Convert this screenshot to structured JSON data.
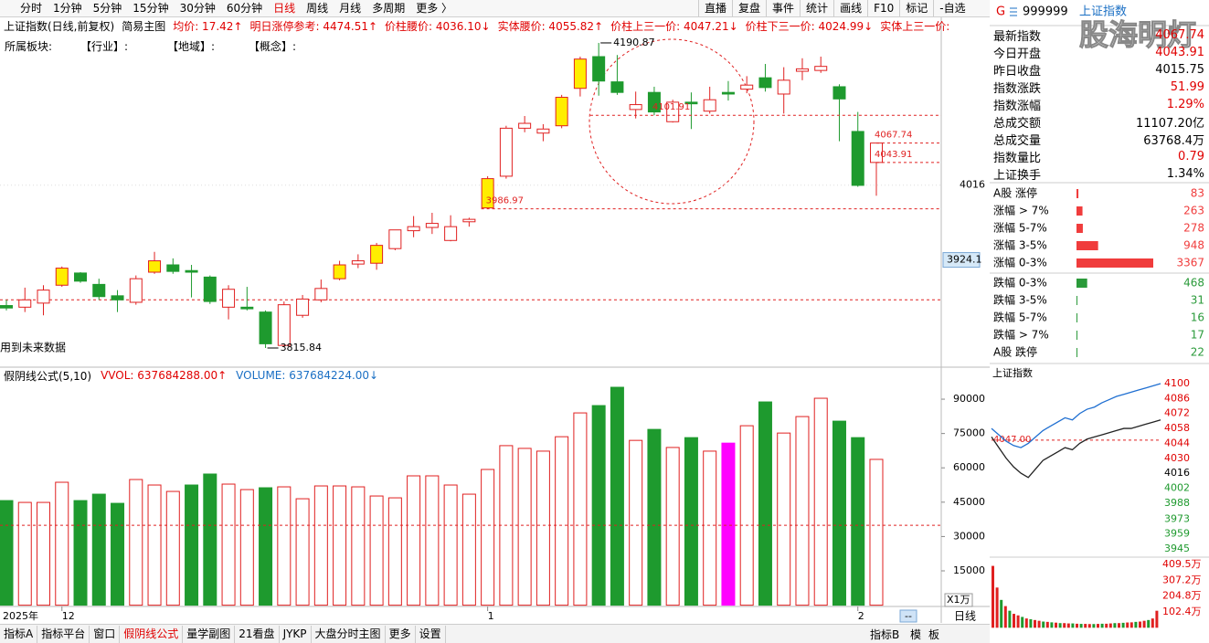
{
  "toolbar": {
    "left": [
      {
        "text": "分时",
        "color": "#000"
      },
      {
        "text": "1分钟",
        "color": "#000"
      },
      {
        "text": "5分钟",
        "color": "#000"
      },
      {
        "text": "15分钟",
        "color": "#000"
      },
      {
        "text": "30分钟",
        "color": "#000"
      },
      {
        "text": "60分钟",
        "color": "#000"
      },
      {
        "text": "日线",
        "color": "#e00000"
      },
      {
        "text": "周线",
        "color": "#000"
      },
      {
        "text": "月线",
        "color": "#000"
      },
      {
        "text": "多周期",
        "color": "#000"
      },
      {
        "text": "更多 〉",
        "color": "#000"
      }
    ],
    "right": [
      "直播",
      "复盘",
      "事件",
      "统计",
      "画线",
      "F10",
      "标记",
      "-自选"
    ]
  },
  "info_bar": {
    "title": "上证指数(日线,前复权)",
    "mode": "简易主图",
    "items": [
      {
        "text": "均价: 17.42↑",
        "color": "#e00000"
      },
      {
        "text": "明日涨停参考: 4474.51↑",
        "color": "#e00000"
      },
      {
        "text": "价柱腰价: 4036.10↓",
        "color": "#e00000"
      },
      {
        "text": "实体腰价: 4055.82↑",
        "color": "#e00000"
      },
      {
        "text": "价柱上三一价: 4047.21↓",
        "color": "#e00000"
      },
      {
        "text": "价柱下三一价: 4024.99↓",
        "color": "#e00000"
      },
      {
        "text": "实体上三一价:",
        "color": "#e00000"
      }
    ]
  },
  "sector_bar": [
    "所属板块:",
    "【行业】:",
    "【地域】:",
    "【概念】:"
  ],
  "note": "用到未来数据",
  "volume_bar": [
    {
      "text": "假阴线公式(5,10)",
      "color": "#000"
    },
    {
      "text": "VVOL: 637684288.00↑",
      "color": "#e00000"
    },
    {
      "text": "VOLUME: 637684224.00↓",
      "color": "#1a6fc4"
    }
  ],
  "bottom_tabs": [
    {
      "text": "指标A",
      "color": "#000"
    },
    {
      "text": "指标平台",
      "color": "#000"
    },
    {
      "text": "窗口",
      "color": "#000"
    },
    {
      "text": "假阴线公式",
      "color": "#e00000"
    },
    {
      "text": "量学副图",
      "color": "#000"
    },
    {
      "text": "21看盘",
      "color": "#000"
    },
    {
      "text": "JYKP",
      "color": "#000"
    },
    {
      "text": "大盘分时主图",
      "color": "#000"
    },
    {
      "text": "更多",
      "color": "#000"
    },
    {
      "text": "设置",
      "color": "#000"
    }
  ],
  "bottom_right": [
    "指标B",
    "模",
    "板"
  ],
  "period_label": "日线",
  "period_box": "--",
  "quote_header": {
    "market": "G",
    "code": "999999",
    "name": "上证指数"
  },
  "watermark": "股海明灯",
  "stats": [
    {
      "name": "最新指数",
      "value": "4067.74",
      "color": "#e00000"
    },
    {
      "name": "今日开盘",
      "value": "4043.91",
      "color": "#e00000"
    },
    {
      "name": "昨日收盘",
      "value": "4015.75",
      "color": "#000"
    },
    {
      "name": "指数涨跌",
      "value": "51.99",
      "color": "#e00000"
    },
    {
      "name": "指数涨幅",
      "value": "1.29%",
      "color": "#e00000"
    },
    {
      "name": "总成交额",
      "value": "11107.20亿",
      "color": "#000"
    },
    {
      "name": "总成交量",
      "value": "63768.4万",
      "color": "#000"
    },
    {
      "name": "指数量比",
      "value": "0.79",
      "color": "#e00000"
    },
    {
      "name": "上证换手",
      "value": "1.34%",
      "color": "#000"
    }
  ],
  "chart_data": [
    {
      "type": "candlestick",
      "year_label": "2025年",
      "categories": [
        null,
        null,
        null,
        "12",
        null,
        null,
        null,
        null,
        null,
        null,
        null,
        null,
        null,
        null,
        null,
        null,
        null,
        null,
        null,
        null,
        null,
        null,
        null,
        null,
        null,
        null,
        "1",
        null,
        null,
        null,
        null,
        null,
        null,
        null,
        null,
        null,
        null,
        null,
        null,
        null,
        null,
        null,
        null,
        null,
        null,
        null,
        "2",
        null
      ],
      "open": [
        3868,
        3866,
        3871,
        3893,
        3908,
        3894,
        3880,
        3872,
        3909,
        3918,
        3911,
        3903,
        3866,
        3866,
        3860,
        3819,
        3856,
        3875,
        3901,
        3919,
        3920,
        3938,
        3960,
        3964,
        3948,
        3971,
        3988,
        4027,
        4086,
        4080,
        4089,
        4135,
        4174,
        4143,
        4109,
        4130,
        4094,
        4118,
        4107,
        4130,
        4134,
        4148,
        4128,
        4156,
        4157,
        4137,
        4082,
        4043.91
      ],
      "high": [
        3875,
        3890,
        3893,
        3916,
        3909,
        3901,
        3887,
        3905,
        3934,
        3926,
        3918,
        3905,
        3893,
        3891,
        3862,
        3873,
        3881,
        3900,
        3923,
        3931,
        3945,
        3961,
        3978,
        3982,
        3979,
        3976,
        4027,
        4089,
        4101,
        4091,
        4127,
        4174,
        4190.87,
        4176,
        4131,
        4137,
        4121,
        4130,
        4137,
        4144,
        4150,
        4165,
        4161,
        4172,
        4174,
        4140,
        4106,
        4067.74
      ],
      "low": [
        3862,
        3860,
        3856,
        3891,
        3896,
        3875,
        3860,
        3869,
        3907,
        3907,
        3878,
        3870,
        3851,
        3862,
        3815.84,
        3817,
        3853,
        3872,
        3899,
        3914,
        3912,
        3936,
        3952,
        3956,
        3947,
        3965,
        3986.97,
        4024,
        4081,
        4070,
        4086,
        4125,
        4126,
        4127,
        4098,
        4101.91,
        4093,
        4085,
        4104,
        4120,
        4129,
        4131,
        4104,
        4145,
        4154,
        4070,
        4014,
        4003
      ],
      "close": [
        3865,
        3875,
        3887,
        3914,
        3898,
        3879,
        3875,
        3901,
        3923,
        3910,
        3909,
        3873,
        3888,
        3864,
        3821,
        3869,
        3876,
        3889,
        3918,
        3923,
        3942,
        3961,
        3965,
        3969,
        3965,
        3974,
        4024,
        4086,
        4092,
        4085,
        4124,
        4171,
        4144,
        4130,
        4115,
        4106,
        4118,
        4116,
        4121,
        4128,
        4139,
        4136,
        4145,
        4159,
        4162,
        4122,
        4015.75,
        4067.74
      ],
      "colors": [
        "#1e9a2e",
        "#e02020",
        "#e02020",
        "#ffee00",
        "#1e9a2e",
        "#1e9a2e",
        "#1e9a2e",
        "#e02020",
        "#ffee00",
        "#1e9a2e",
        "#1e9a2e",
        "#1e9a2e",
        "#e02020",
        "#1e9a2e",
        "#1e9a2e",
        "#e02020",
        "#e02020",
        "#e02020",
        "#ffee00",
        "#e02020",
        "#ffee00",
        "#e02020",
        "#e02020",
        "#e02020",
        "#e02020",
        "#e02020",
        "#ffee00",
        "#e02020",
        "#e02020",
        "#e02020",
        "#ffee00",
        "#ffee00",
        "#1e9a2e",
        "#1e9a2e",
        "#e02020",
        "#1e9a2e",
        "#e02020",
        "#1e9a2e",
        "#e02020",
        "#1e9a2e",
        "#e02020",
        "#1e9a2e",
        "#e02020",
        "#e02020",
        "#e02020",
        "#1e9a2e",
        "#1e9a2e",
        "#e02020"
      ],
      "ylim": [
        3794.5,
        4198.7
      ],
      "yticks": [
        4016
      ],
      "reference_lines": [
        3875
      ],
      "cursor_value": 3924.1
    },
    {
      "type": "bar",
      "categories": [
        null,
        null,
        null,
        null,
        null,
        null,
        null,
        null,
        null,
        null,
        null,
        null,
        null,
        null,
        null,
        null,
        null,
        null,
        null,
        null,
        null,
        null,
        null,
        null,
        null,
        null,
        null,
        null,
        null,
        null,
        null,
        null,
        null,
        null,
        null,
        null,
        null,
        null,
        null,
        null,
        null,
        null,
        null,
        null,
        null,
        null,
        null,
        null
      ],
      "values": [
        45700,
        44900,
        44900,
        53700,
        45700,
        48500,
        44500,
        54900,
        52500,
        49700,
        52500,
        57300,
        52900,
        50500,
        51300,
        51700,
        46500,
        52100,
        52100,
        51700,
        47700,
        46900,
        56500,
        56500,
        52500,
        48500,
        59300,
        69700,
        68500,
        67300,
        73600,
        84000,
        87200,
        95200,
        72000,
        76800,
        68900,
        73200,
        67300,
        70800,
        78400,
        88800,
        75200,
        82400,
        90400,
        80400,
        73200,
        63700
      ],
      "colors": [
        "#1e9a2e",
        "#e02020",
        "#e02020",
        "#e02020",
        "#1e9a2e",
        "#1e9a2e",
        "#1e9a2e",
        "#e02020",
        "#e02020",
        "#e02020",
        "#1e9a2e",
        "#1e9a2e",
        "#e02020",
        "#e02020",
        "#1e9a2e",
        "#e02020",
        "#e02020",
        "#e02020",
        "#e02020",
        "#e02020",
        "#e02020",
        "#e02020",
        "#e02020",
        "#e02020",
        "#e02020",
        "#e02020",
        "#e02020",
        "#e02020",
        "#e02020",
        "#e02020",
        "#e02020",
        "#e02020",
        "#1e9a2e",
        "#1e9a2e",
        "#e02020",
        "#1e9a2e",
        "#e02020",
        "#1e9a2e",
        "#e02020",
        "#ff00ff",
        "#e02020",
        "#1e9a2e",
        "#e02020",
        "#e02020",
        "#e02020",
        "#1e9a2e",
        "#1e9a2e",
        "#e02020"
      ],
      "ylim": [
        0,
        96800
      ],
      "yticks": [
        15000,
        30000,
        45000,
        60000,
        75000,
        90000
      ],
      "reference_lines": [
        34900
      ],
      "unit_label": "X1万"
    },
    {
      "type": "hbar",
      "categories": [
        "A股 涨停",
        "涨幅 > 7%",
        "涨幅 5-7%",
        "涨幅 3-5%",
        "涨幅 0-3%",
        "跌幅 0-3%",
        "跌幅 3-5%",
        "跌幅 5-7%",
        "跌幅 > 7%",
        "A股 跌停"
      ],
      "values": [
        83,
        263,
        278,
        948,
        3367,
        468,
        31,
        16,
        17,
        22
      ],
      "colors": [
        "#f03c3c",
        "#f03c3c",
        "#f03c3c",
        "#f03c3c",
        "#f03c3c",
        "#2a9a3a",
        "#2a9a3a",
        "#2a9a3a",
        "#2a9a3a",
        "#2a9a3a"
      ],
      "xlim": [
        0,
        3367
      ]
    },
    {
      "type": "line",
      "title": "上证指数",
      "categories": [
        null,
        null,
        null,
        null,
        null,
        null,
        null,
        null,
        null,
        null,
        null,
        null,
        null,
        null,
        null,
        null,
        null,
        null,
        null,
        null,
        null,
        null,
        null,
        null
      ],
      "series": [
        {
          "color": "#1f6fd1",
          "values": [
            4058,
            4052,
            4046,
            4042,
            4040,
            4044,
            4050,
            4056,
            4060,
            4064,
            4068,
            4066,
            4072,
            4076,
            4078,
            4082,
            4085,
            4088,
            4090,
            4092,
            4094,
            4096,
            4098,
            4100
          ]
        },
        {
          "color": "#222222",
          "values": [
            4050,
            4040,
            4030,
            4022,
            4016,
            4012,
            4020,
            4028,
            4032,
            4036,
            4040,
            4038,
            4044,
            4048,
            4050,
            4052,
            4054,
            4056,
            4058,
            4058,
            4060,
            4062,
            4064,
            4066
          ]
        }
      ],
      "ylim": [
        3941.6,
        4102.6
      ],
      "yticks": [
        4100,
        4086,
        4072,
        4058,
        4044,
        4030,
        4016,
        4002,
        3988,
        3973,
        3959,
        3945
      ],
      "ytick_colors": [
        "#e00000",
        "#e00000",
        "#e00000",
        "#e00000",
        "#e00000",
        "#e00000",
        "#000",
        "#1e9a2e",
        "#1e9a2e",
        "#1e9a2e",
        "#1e9a2e",
        "#1e9a2e"
      ],
      "reference_value": {
        "value": 4047,
        "label": "4047.00"
      }
    },
    {
      "type": "bar",
      "categories": [
        null,
        null,
        null,
        null,
        null,
        null,
        null,
        null,
        null,
        null,
        null,
        null,
        null,
        null,
        null,
        null,
        null,
        null,
        null,
        null,
        null,
        null,
        null,
        null,
        null,
        null,
        null,
        null,
        null,
        null,
        null,
        null,
        null,
        null,
        null,
        null,
        null,
        null,
        null,
        null
      ],
      "values": [
        400,
        260,
        180,
        140,
        110,
        90,
        80,
        70,
        60,
        55,
        50,
        45,
        40,
        38,
        35,
        33,
        30,
        30,
        28,
        28,
        26,
        25,
        25,
        24,
        24,
        25,
        26,
        26,
        28,
        30,
        30,
        32,
        34,
        35,
        38,
        40,
        45,
        50,
        60,
        110
      ],
      "colors": [
        "#e02020",
        "#e02020",
        "#1e9a2e",
        "#e02020",
        "#1e9a2e",
        "#e02020",
        "#e02020",
        "#1e9a2e",
        "#e02020",
        "#1e9a2e",
        "#e02020",
        "#e02020",
        "#1e9a2e",
        "#e02020",
        "#1e9a2e",
        "#e02020",
        "#1e9a2e",
        "#e02020",
        "#e02020",
        "#1e9a2e",
        "#e02020",
        "#1e9a2e",
        "#e02020",
        "#e02020",
        "#1e9a2e",
        "#e02020",
        "#1e9a2e",
        "#e02020",
        "#e02020",
        "#1e9a2e",
        "#e02020",
        "#1e9a2e",
        "#e02020",
        "#e02020",
        "#1e9a2e",
        "#e02020",
        "#e02020",
        "#1e9a2e",
        "#e02020",
        "#e02020"
      ],
      "ylim": [
        0,
        427
      ],
      "yticks": [
        {
          "value": 409.5,
          "label": "409.5万"
        },
        {
          "value": 307.2,
          "label": "307.2万"
        },
        {
          "value": 204.8,
          "label": "204.8万"
        },
        {
          "value": 102.4,
          "label": "102.4万"
        }
      ]
    }
  ]
}
